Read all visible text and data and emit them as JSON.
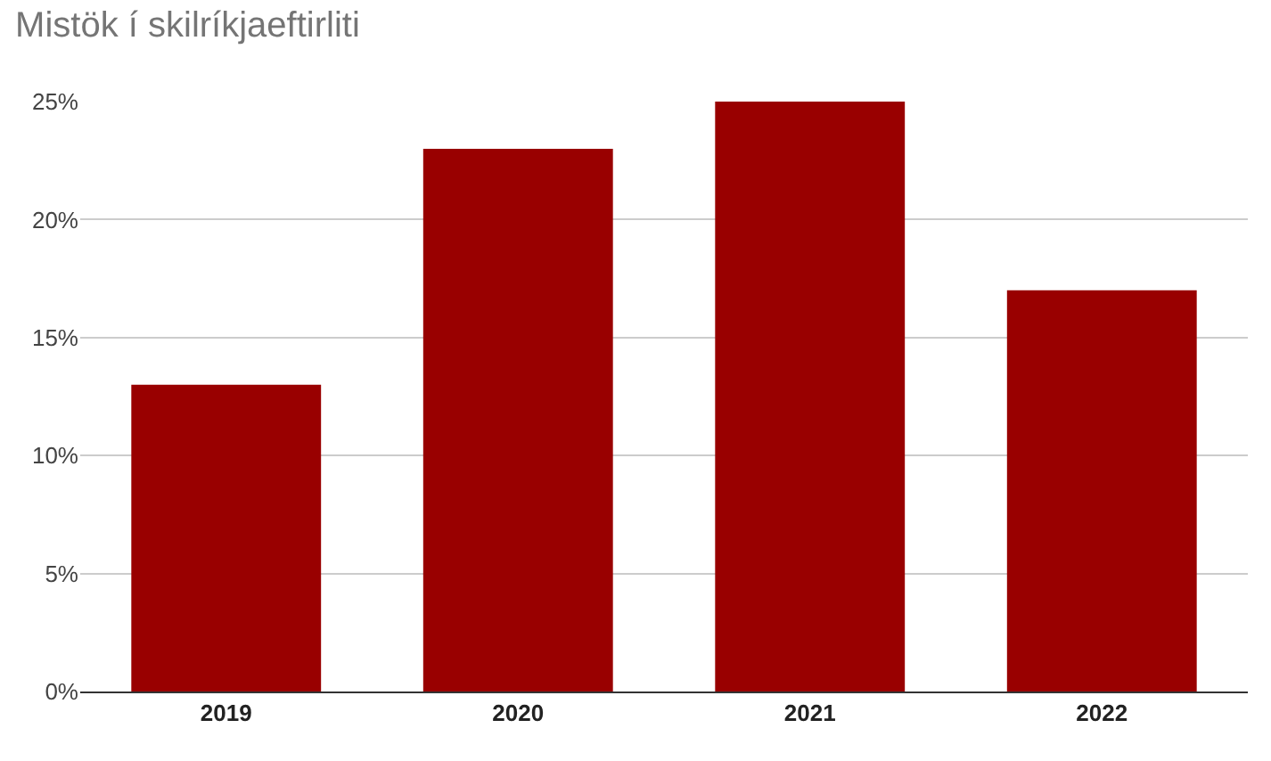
{
  "chart_data": {
    "type": "bar",
    "title": "Mistök í skilríkjaeftirliti",
    "categories": [
      "2019",
      "2020",
      "2021",
      "2022"
    ],
    "values": [
      13,
      23,
      25,
      17
    ],
    "color": "#990000",
    "ylim": [
      0,
      25
    ],
    "yticks": [
      {
        "value": 0,
        "label": "0%"
      },
      {
        "value": 5,
        "label": "5%"
      },
      {
        "value": 10,
        "label": "10%"
      },
      {
        "value": 15,
        "label": "15%"
      },
      {
        "value": 20,
        "label": "20%"
      },
      {
        "value": 25,
        "label": "25%"
      }
    ],
    "grid": "y"
  }
}
